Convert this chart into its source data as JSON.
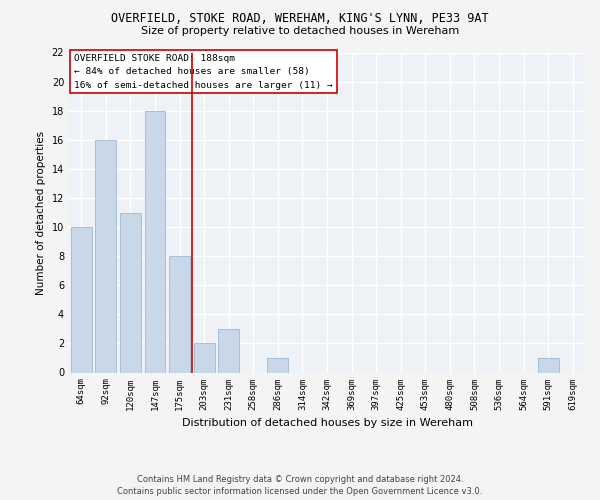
{
  "title": "OVERFIELD, STOKE ROAD, WEREHAM, KING'S LYNN, PE33 9AT",
  "subtitle": "Size of property relative to detached houses in Wereham",
  "xlabel": "Distribution of detached houses by size in Wereham",
  "ylabel": "Number of detached properties",
  "categories": [
    "64sqm",
    "92sqm",
    "120sqm",
    "147sqm",
    "175sqm",
    "203sqm",
    "231sqm",
    "258sqm",
    "286sqm",
    "314sqm",
    "342sqm",
    "369sqm",
    "397sqm",
    "425sqm",
    "453sqm",
    "480sqm",
    "508sqm",
    "536sqm",
    "564sqm",
    "591sqm",
    "619sqm"
  ],
  "values": [
    10,
    16,
    11,
    18,
    8,
    2,
    3,
    0,
    1,
    0,
    0,
    0,
    0,
    0,
    0,
    0,
    0,
    0,
    0,
    1,
    0
  ],
  "bar_color": "#c8d8e8",
  "bar_edge_color": "#a0b8d0",
  "vline_x": 4.5,
  "vline_color": "#cc0000",
  "annotation_text": "OVERFIELD STOKE ROAD: 188sqm\n← 84% of detached houses are smaller (58)\n16% of semi-detached houses are larger (11) →",
  "annotation_box_color": "#ffffff",
  "annotation_box_edge_color": "#cc0000",
  "ylim": [
    0,
    22
  ],
  "yticks": [
    0,
    2,
    4,
    6,
    8,
    10,
    12,
    14,
    16,
    18,
    20,
    22
  ],
  "background_color": "#eef2f6",
  "grid_color": "#ffffff",
  "title_fontsize": 8.5,
  "subtitle_fontsize": 8.0,
  "ylabel_fontsize": 7.5,
  "xlabel_fontsize": 8.0,
  "tick_fontsize": 6.5,
  "annotation_fontsize": 6.8,
  "footer": "Contains HM Land Registry data © Crown copyright and database right 2024.\nContains public sector information licensed under the Open Government Licence v3.0.",
  "footer_fontsize": 6.0
}
